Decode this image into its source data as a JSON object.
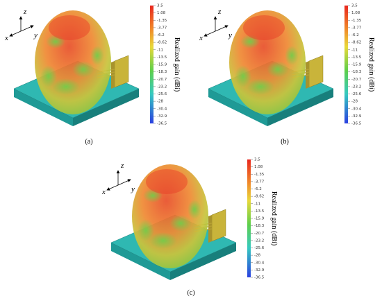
{
  "panels": [
    {
      "label": "(a)",
      "axes": {
        "x": "x",
        "y": "y",
        "z": "z"
      },
      "colorbar": {
        "title": "Realized gain (dBi)",
        "ticks": [
          "3.5",
          "1.08",
          "-1.35",
          "-3.77",
          "-6.2",
          "-8.62",
          "-11",
          "-13.5",
          "-15.9",
          "-18.3",
          "-20.7",
          "-23.2",
          "-25.6",
          "-28",
          "-30.4",
          "-32.9",
          "-36.5"
        ]
      }
    },
    {
      "label": "(b)",
      "axes": {
        "x": "x",
        "y": "y",
        "z": "z"
      },
      "colorbar": {
        "title": "Realized gain (dBi)",
        "ticks": [
          "3.5",
          "1.08",
          "-1.35",
          "-3.77",
          "-6.2",
          "-8.62",
          "-11",
          "-13.5",
          "-15.9",
          "-18.3",
          "-20.7",
          "-23.2",
          "-25.6",
          "-28",
          "-30.4",
          "-32.9",
          "-36.5"
        ]
      }
    },
    {
      "label": "(c)",
      "axes": {
        "x": "x",
        "y": "y",
        "z": "z"
      },
      "colorbar": {
        "title": "Realized gain (dBi)",
        "ticks": [
          "3.5",
          "1.08",
          "-1.35",
          "-3.77",
          "-6.2",
          "-8.62",
          "-11",
          "-13.5",
          "-15.9",
          "-18.3",
          "-20.7",
          "-23.2",
          "-25.6",
          "-28",
          "-30.4",
          "-32.9",
          "-36.5"
        ]
      }
    }
  ]
}
